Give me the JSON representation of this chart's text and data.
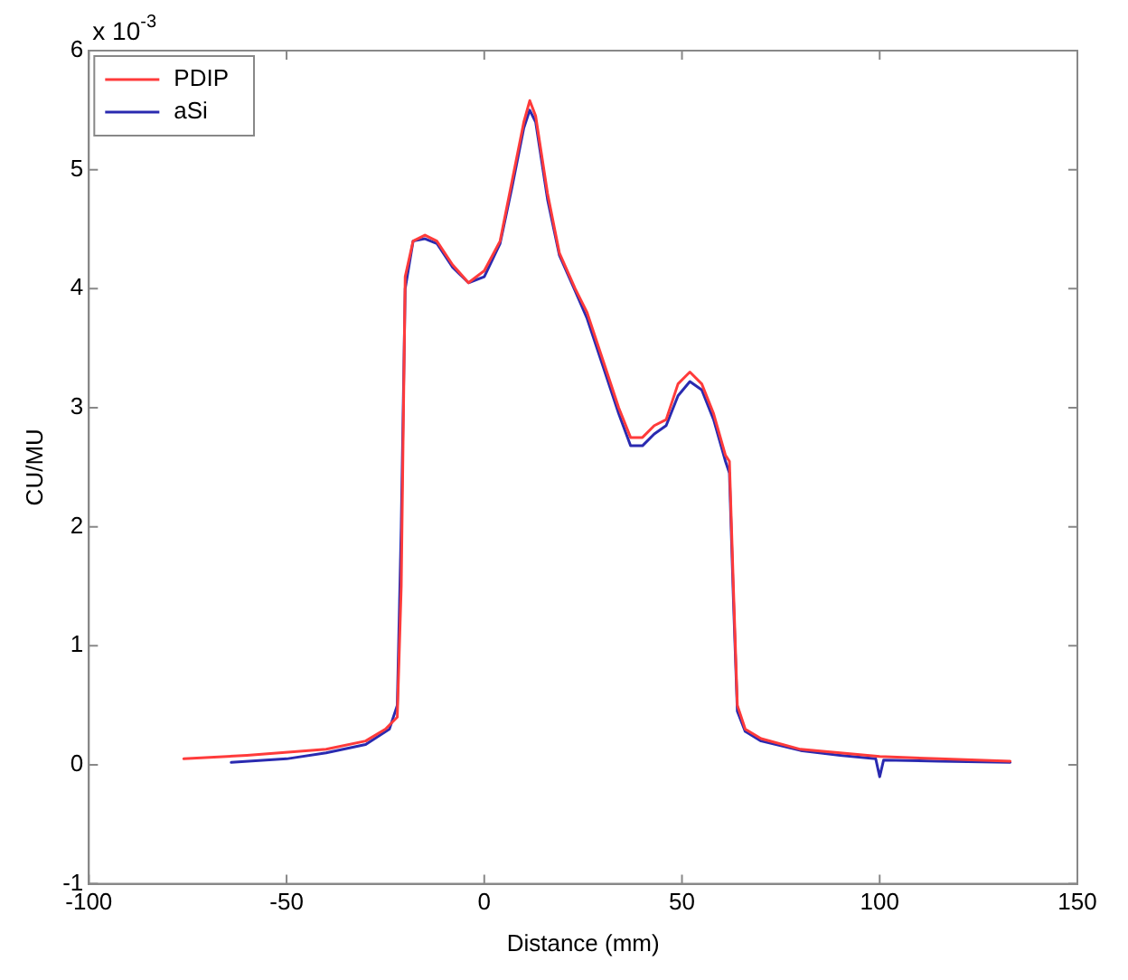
{
  "chart_data": {
    "type": "line",
    "xlabel": "Distance (mm)",
    "ylabel": "CU/MU",
    "annotations": [
      "x 10$^{-3}$"
    ],
    "xlim": [
      -100,
      150
    ],
    "xticks": [
      -100,
      -50,
      0,
      50,
      100,
      150
    ],
    "ylim": [
      -1,
      6
    ],
    "yticks": [
      -1,
      0,
      1,
      2,
      3,
      4,
      5,
      6
    ],
    "grid": false,
    "legend": "top left",
    "marker": "none",
    "line_style": "solid",
    "series": [
      {
        "name": "PDIP",
        "color": "#ff3b3b",
        "x": [
          -76,
          -60,
          -40,
          -30,
          -25,
          -22,
          -21,
          -20,
          -18,
          -15,
          -12,
          -8,
          -4,
          0,
          4,
          7,
          10,
          11.5,
          13,
          16,
          19,
          23,
          26,
          30,
          34,
          37,
          40,
          43,
          46,
          49,
          52,
          55,
          58,
          61,
          62,
          63,
          64,
          66,
          70,
          80,
          90,
          100,
          115,
          133
        ],
        "values": [
          0.05,
          0.08,
          0.13,
          0.2,
          0.3,
          0.4,
          1.5,
          4.1,
          4.4,
          4.45,
          4.4,
          4.2,
          4.05,
          4.15,
          4.4,
          4.9,
          5.4,
          5.58,
          5.45,
          4.8,
          4.3,
          4.0,
          3.8,
          3.4,
          3.0,
          2.75,
          2.75,
          2.85,
          2.9,
          3.2,
          3.3,
          3.2,
          2.95,
          2.6,
          2.55,
          1.5,
          0.5,
          0.3,
          0.22,
          0.13,
          0.1,
          0.07,
          0.05,
          0.03
        ]
      },
      {
        "name": "aSi",
        "color": "#2a2ab0",
        "x": [
          -64,
          -50,
          -40,
          -30,
          -24,
          -22,
          -21,
          -20,
          -18,
          -15,
          -12,
          -8,
          -4,
          0,
          4,
          7,
          10,
          11.5,
          13,
          16,
          19,
          23,
          26,
          30,
          34,
          37,
          40,
          43,
          46,
          49,
          52,
          55,
          58,
          61,
          62,
          63,
          64,
          66,
          70,
          80,
          90,
          99,
          100,
          101,
          115,
          133
        ],
        "values": [
          0.02,
          0.05,
          0.1,
          0.17,
          0.3,
          0.5,
          2.0,
          4.0,
          4.4,
          4.42,
          4.38,
          4.18,
          4.05,
          4.1,
          4.38,
          4.85,
          5.35,
          5.5,
          5.4,
          4.75,
          4.28,
          3.98,
          3.75,
          3.35,
          2.95,
          2.68,
          2.68,
          2.78,
          2.85,
          3.1,
          3.22,
          3.15,
          2.9,
          2.55,
          2.45,
          1.4,
          0.45,
          0.28,
          0.2,
          0.12,
          0.08,
          0.05,
          -0.1,
          0.04,
          0.03,
          0.02
        ]
      }
    ]
  }
}
